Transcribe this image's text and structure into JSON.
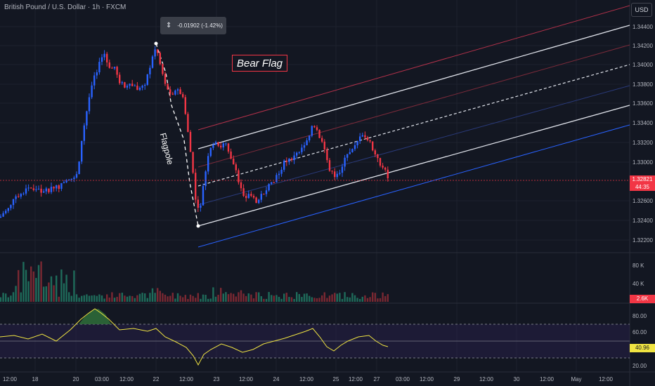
{
  "header": {
    "title": "British Pound / U.S. Dollar · 1h · FXCM",
    "currency": "USD"
  },
  "annotations": {
    "measure": "-0.01902 (-1.42%)",
    "bear_flag": "Bear Flag",
    "flagpole": "Flagpole"
  },
  "price_axis": {
    "ticks": [
      "1.34400",
      "1.34200",
      "1.34000",
      "1.33800",
      "1.33600",
      "1.33400",
      "1.33200",
      "1.33000",
      "1.32600",
      "1.32400",
      "1.32200"
    ],
    "current_price": "1.32821",
    "countdown": "44:35"
  },
  "volume_axis": {
    "ticks": [
      "80 K",
      "40 K"
    ],
    "current": "2.6K"
  },
  "rsi_axis": {
    "ticks": [
      "80.00",
      "60.00",
      "20.00"
    ],
    "current": "40.96"
  },
  "time_axis": {
    "labels": [
      "12:00",
      "18",
      "20",
      "03:00",
      "12:00",
      "22",
      "12:00",
      "23",
      "12:00",
      "24",
      "12:00",
      "25",
      "12:00",
      "27",
      "03:00",
      "12:00",
      "29",
      "12:00",
      "30",
      "12:00",
      "May",
      "12:00"
    ]
  },
  "colors": {
    "background": "#131722",
    "up": "#2962ff",
    "down": "#f23645",
    "rsi": "#f0e442",
    "accent_red": "#f23645"
  }
}
